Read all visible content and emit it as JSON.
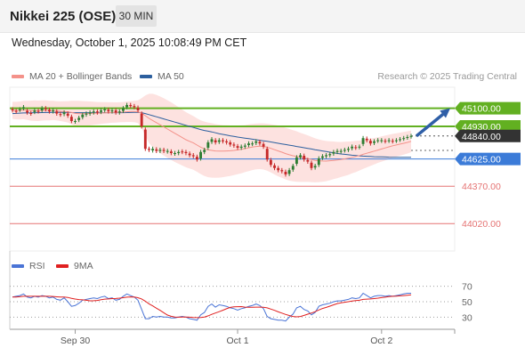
{
  "header": {
    "symbol": "Nikkei 225 (OSE)",
    "timeframe": "30 MIN",
    "datetime": "Wednesday, October 1, 2025 10:08:49 PM CET"
  },
  "legend": {
    "ma_bb": {
      "label": "MA 20 + Bollinger Bands",
      "color": "#f4928a"
    },
    "ma50": {
      "label": "MA 50",
      "color": "#2c5f9e"
    }
  },
  "credit": "Research © 2025 Trading Central",
  "rsi_legend": {
    "rsi": {
      "label": "RSI",
      "color": "#4a74d6"
    },
    "ma9": {
      "label": "9MA",
      "color": "#e02020"
    }
  },
  "colors": {
    "up": "#2e7d32",
    "down": "#c62828",
    "support": "#e57373",
    "resistance": "#62b021",
    "pivot": "#3b7bd8",
    "current": "#333333",
    "bb_fill": "#fde2e0",
    "arrow": "#2f5fa7"
  },
  "chart_data": {
    "type": "candlestick",
    "ylim": [
      43930,
      45180
    ],
    "x_ticks": [
      "Sep 30",
      "Oct 1",
      "Oct 2"
    ],
    "levels": [
      {
        "value": 45100,
        "label": "45100.00",
        "kind": "resistance"
      },
      {
        "value": 44930,
        "label": "44930.00",
        "kind": "resistance"
      },
      {
        "value": 44840,
        "label": "44840.00",
        "kind": "current"
      },
      {
        "value": 44625,
        "label": "44625.00",
        "kind": "pivot"
      },
      {
        "value": 44370,
        "label": "44370.00",
        "kind": "support"
      },
      {
        "value": 44020,
        "label": "44020.00",
        "kind": "support"
      }
    ],
    "close": [
      45080,
      45070,
      45090,
      45110,
      45060,
      45050,
      45080,
      45070,
      45100,
      45090,
      45070,
      45080,
      45050,
      45040,
      45060,
      45030,
      44980,
      44980,
      45010,
      45040,
      45050,
      45060,
      45070,
      45060,
      45080,
      45090,
      45070,
      45080,
      45060,
      45070,
      45100,
      45130,
      45120,
      45110,
      45080,
      44930,
      44720,
      44710,
      44720,
      44700,
      44710,
      44700,
      44700,
      44680,
      44680,
      44690,
      44690,
      44680,
      44660,
      44650,
      44620,
      44690,
      44710,
      44780,
      44810,
      44780,
      44800,
      44790,
      44780,
      44760,
      44750,
      44730,
      44740,
      44750,
      44770,
      44770,
      44790,
      44770,
      44740,
      44620,
      44570,
      44540,
      44520,
      44510,
      44480,
      44520,
      44560,
      44640,
      44660,
      44620,
      44600,
      44540,
      44560,
      44630,
      44650,
      44660,
      44670,
      44690,
      44700,
      44700,
      44710,
      44720,
      44740,
      44730,
      44740,
      44820,
      44800,
      44770,
      44790,
      44800,
      44800,
      44790,
      44800,
      44790,
      44800,
      44810,
      44820,
      44830,
      44840
    ],
    "open_gaps": [
      -10,
      -5,
      5,
      10,
      -15,
      -5,
      15,
      -5,
      20,
      -10,
      -15,
      10,
      -20,
      -5,
      15,
      -20,
      -40,
      5,
      20,
      25,
      10,
      10,
      10,
      -10,
      15,
      10,
      -15,
      10,
      -20,
      10,
      25,
      20,
      -10,
      -10,
      -25,
      -120,
      -180,
      -10,
      15,
      -15,
      10,
      -10,
      5,
      -15,
      5,
      10,
      -5,
      -10,
      -15,
      -10,
      -25,
      60,
      20,
      50,
      25,
      -20,
      15,
      -10,
      -10,
      -20,
      -10,
      -15,
      10,
      10,
      15,
      5,
      15,
      -15,
      -25,
      -100,
      -45,
      -25,
      -20,
      -10,
      -25,
      35,
      35,
      60,
      20,
      -35,
      -15,
      -50,
      15,
      60,
      15,
      10,
      10,
      15,
      10,
      5,
      5,
      10,
      15,
      -5,
      5,
      55,
      -15,
      -25,
      15,
      5,
      5,
      -5,
      5,
      -5,
      5,
      5,
      5,
      5,
      5
    ],
    "ma20": [
      45080,
      45078,
      45079,
      45083,
      45080,
      45077,
      45077,
      45076,
      45079,
      45080,
      45078,
      45079,
      45076,
      45072,
      45070,
      45067,
      45060,
      45052,
      45049,
      45049,
      45050,
      45051,
      45053,
      45053,
      45055,
      45057,
      45058,
      45060,
      45060,
      45062,
      45064,
      45067,
      45069,
      45069,
      45067,
      45055,
      45030,
      45005,
      44985,
      44965,
      44945,
      44925,
      44905,
      44885,
      44865,
      44845,
      44825,
      44805,
      44790,
      44775,
      44755,
      44735,
      44720,
      44710,
      44705,
      44700,
      44698,
      44698,
      44700,
      44702,
      44705,
      44710,
      44715,
      44722,
      44730,
      44737,
      44742,
      44744,
      44742,
      44735,
      44724,
      44712,
      44700,
      44688,
      44675,
      44664,
      44655,
      44648,
      44640,
      44634,
      44628,
      44620,
      44612,
      44608,
      44606,
      44605,
      44608,
      44612,
      44615,
      44620,
      44626,
      44632,
      44640,
      44648,
      44657,
      44668,
      44678,
      44688,
      44698,
      44708,
      44718,
      44728,
      44738,
      44748,
      44756,
      44764,
      44772,
      44780,
      44790
    ],
    "ma50": [
      45050,
      45052,
      45054,
      45056,
      45056,
      45057,
      45058,
      45058,
      45059,
      45060,
      45060,
      45061,
      45061,
      45061,
      45061,
      45061,
      45059,
      45058,
      45058,
      45058,
      45058,
      45058,
      45058,
      45058,
      45058,
      45058,
      45058,
      45058,
      45058,
      45058,
      45058,
      45059,
      45060,
      45061,
      45061,
      45058,
      45050,
      45040,
      45030,
      45020,
      45010,
      45000,
      44990,
      44980,
      44970,
      44960,
      44950,
      44940,
      44930,
      44920,
      44910,
      44900,
      44892,
      44885,
      44878,
      44870,
      44862,
      44855,
      44848,
      44842,
      44836,
      44830,
      44825,
      44820,
      44815,
      44810,
      44805,
      44800,
      44795,
      44790,
      44784,
      44778,
      44772,
      44766,
      44760,
      44754,
      44748,
      44742,
      44736,
      44730,
      44724,
      44718,
      44712,
      44706,
      44700,
      44694,
      44688,
      44682,
      44677,
      44672,
      44668,
      44664,
      44660,
      44657,
      44654,
      44652,
      44650,
      44648,
      44646,
      44645,
      44644,
      44643,
      44642,
      44641,
      44640,
      44640,
      44640,
      44640,
      44640
    ],
    "bb_width": [
      80,
      82,
      84,
      86,
      90,
      94,
      96,
      96,
      95,
      94,
      92,
      90,
      90,
      92,
      96,
      100,
      110,
      118,
      120,
      118,
      115,
      112,
      108,
      105,
      102,
      100,
      98,
      96,
      95,
      94,
      94,
      96,
      98,
      100,
      106,
      140,
      190,
      230,
      250,
      260,
      265,
      268,
      270,
      270,
      268,
      265,
      262,
      258,
      255,
      252,
      250,
      252,
      255,
      256,
      255,
      252,
      248,
      244,
      240,
      236,
      232,
      228,
      224,
      220,
      218,
      216,
      214,
      214,
      216,
      220,
      226,
      232,
      238,
      240,
      242,
      242,
      240,
      236,
      230,
      224,
      218,
      212,
      206,
      200,
      194,
      188,
      182,
      176,
      170,
      164,
      160,
      156,
      150,
      146,
      140,
      136,
      132,
      128,
      124,
      120,
      118,
      116,
      114,
      112,
      110,
      108,
      106,
      104,
      102
    ],
    "rsi": [
      56,
      57,
      58,
      60,
      56,
      55,
      57,
      56,
      58,
      57,
      55,
      56,
      53,
      52,
      55,
      50,
      44,
      45,
      48,
      52,
      53,
      54,
      55,
      54,
      56,
      57,
      54,
      55,
      52,
      53,
      57,
      60,
      58,
      56,
      52,
      40,
      28,
      28,
      31,
      30,
      31,
      30,
      30,
      29,
      29,
      30,
      31,
      30,
      28,
      27,
      26,
      33,
      36,
      44,
      47,
      43,
      46,
      45,
      44,
      42,
      41,
      39,
      41,
      42,
      44,
      45,
      47,
      45,
      41,
      31,
      28,
      27,
      26,
      26,
      25,
      30,
      34,
      42,
      44,
      40,
      38,
      33,
      36,
      44,
      46,
      47,
      48,
      50,
      51,
      51,
      52,
      53,
      55,
      54,
      55,
      61,
      58,
      55,
      57,
      58,
      58,
      57,
      58,
      57,
      58,
      59,
      60,
      61,
      61
    ],
    "rsi_ma9": [
      56,
      56,
      56.5,
      57,
      57,
      57,
      57,
      57,
      57,
      57,
      57,
      56.8,
      56.3,
      56,
      56,
      55.5,
      54.4,
      53.5,
      52.8,
      52.4,
      51.8,
      51.2,
      51.3,
      51.6,
      52.6,
      53.3,
      53.6,
      54,
      54.2,
      54.6,
      55.2,
      55.9,
      56.2,
      56.1,
      55.2,
      53.6,
      50.7,
      47.2,
      44.6,
      41.6,
      38.8,
      35.7,
      32.7,
      31.1,
      30,
      29.9,
      30,
      30.1,
      29.9,
      29.6,
      29.3,
      29.6,
      30.1,
      31.6,
      33.6,
      35.3,
      37.1,
      38.9,
      40.9,
      42.6,
      43.4,
      43.5,
      43.6,
      43,
      42.9,
      42.7,
      43,
      43,
      42.8,
      42,
      40.4,
      38.8,
      36.8,
      35.2,
      33.5,
      32.1,
      30.9,
      30.4,
      30.9,
      32.2,
      33.8,
      35.3,
      37.1,
      39.3,
      41.2,
      42.6,
      44.2,
      46,
      47.6,
      48.5,
      49.3,
      50,
      50.8,
      51.4,
      51.9,
      53,
      53.4,
      53.6,
      54,
      54.6,
      55.3,
      55.9,
      56.6,
      57,
      57.2,
      57.6,
      58,
      58.4,
      58.9
    ],
    "rsi_levels": [
      70,
      50,
      30
    ],
    "series": [
      {
        "name": "MA 20 + Bollinger Bands"
      },
      {
        "name": "MA 50"
      },
      {
        "name": "RSI"
      },
      {
        "name": "9MA"
      }
    ]
  }
}
